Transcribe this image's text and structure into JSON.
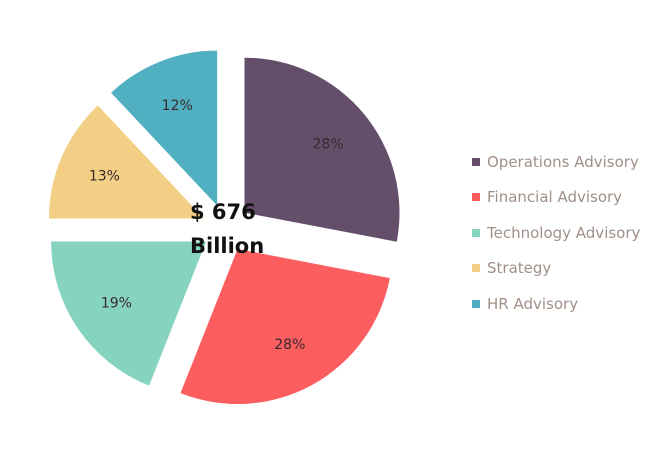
{
  "chart_data": {
    "type": "pie",
    "title": "",
    "center_label": {
      "line1": "$ 676",
      "line2": "Billion"
    },
    "categories": [
      "Operations Advisory",
      "Financial Advisory",
      "Technology Advisory",
      "Strategy",
      "HR Advisory"
    ],
    "values": [
      28,
      28,
      19,
      13,
      12
    ],
    "labels": [
      "28%",
      "28%",
      "19%",
      "13%",
      "12%"
    ],
    "colors": [
      "#644e6a",
      "#fc5d5f",
      "#86d3c0",
      "#f3cf86",
      "#50afc0"
    ],
    "legend_position": "right",
    "exploded": true
  }
}
